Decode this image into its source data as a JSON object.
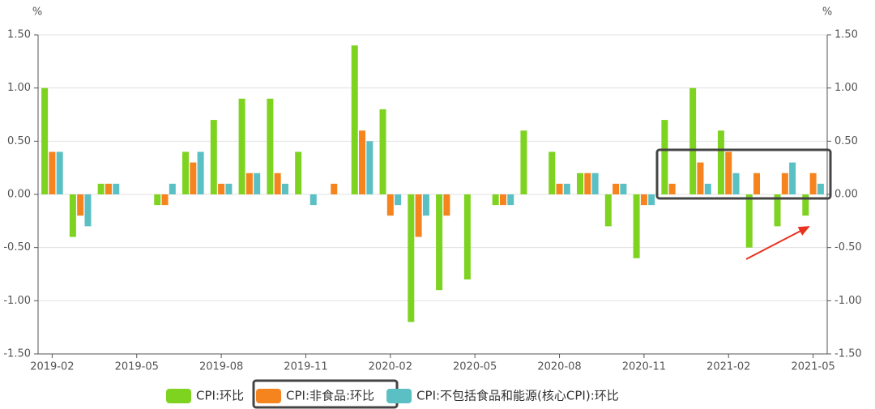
{
  "chart_data": {
    "type": "bar",
    "categories": [
      "2019-02",
      null,
      null,
      "2019-05",
      null,
      null,
      "2019-08",
      null,
      null,
      "2019-11",
      null,
      null,
      "2020-02",
      null,
      null,
      "2020-05",
      null,
      null,
      "2020-08",
      null,
      null,
      "2020-11",
      null,
      null,
      "2021-02",
      null,
      null,
      "2021-05"
    ],
    "series": [
      {
        "name": "CPI:环比",
        "color": "#7ed321",
        "values": [
          1.0,
          -0.4,
          0.1,
          0,
          -0.1,
          0.4,
          0.7,
          0.9,
          0.9,
          0.4,
          0,
          1.4,
          0.8,
          -1.2,
          -0.9,
          -0.8,
          -0.1,
          0.6,
          0.4,
          0.2,
          -0.3,
          -0.6,
          0.7,
          1.0,
          0.6,
          -0.5,
          -0.3,
          -0.2
        ]
      },
      {
        "name": "CPI:非食品:环比",
        "color": "#f5841f",
        "values": [
          0.4,
          -0.2,
          0.1,
          0,
          -0.1,
          0.3,
          0.1,
          0.2,
          0.2,
          0,
          0.1,
          0.6,
          -0.2,
          -0.4,
          -0.2,
          0,
          -0.1,
          0,
          0.1,
          0.2,
          0.1,
          -0.1,
          0.1,
          0.3,
          0.4,
          0.2,
          0.2,
          0.2
        ]
      },
      {
        "name": "CPI:不包括食品和能源(核心CPI):环比",
        "color": "#5bc0c4",
        "values": [
          0.4,
          -0.3,
          0.1,
          0,
          0.1,
          0.4,
          0.1,
          0.2,
          0.1,
          -0.1,
          0,
          0.5,
          -0.1,
          -0.2,
          0,
          0,
          -0.1,
          0,
          0.1,
          0.2,
          0.1,
          -0.1,
          0,
          0.1,
          0.2,
          0,
          0.3,
          0.1
        ]
      }
    ],
    "y_unit": "%",
    "y2_unit": "%",
    "ylim": [
      -1.5,
      1.5
    ],
    "yticks": [
      {
        "value": -1.5,
        "label": "-1.50"
      },
      {
        "value": -1,
        "label": "-1.00"
      },
      {
        "value": -0.5,
        "label": "-0.50"
      },
      {
        "value": 0,
        "label": "0.00"
      },
      {
        "value": 0.5,
        "label": "0.50"
      },
      {
        "value": 1,
        "label": "1.00"
      },
      {
        "value": 1.5,
        "label": "1.50"
      }
    ],
    "y2lim": [
      -1.5,
      1.5
    ],
    "y2ticks": [
      {
        "value": -1.5,
        "label": "-1.50"
      },
      {
        "value": -1,
        "label": "-1.00"
      },
      {
        "value": -0.5,
        "label": "-0.50"
      },
      {
        "value": 0,
        "label": "0.00"
      },
      {
        "value": 0.5,
        "label": "0.50"
      },
      {
        "value": 1,
        "label": "1.00"
      },
      {
        "value": 1.5,
        "label": "1.50"
      }
    ],
    "grid": true,
    "legend": "bottom"
  }
}
